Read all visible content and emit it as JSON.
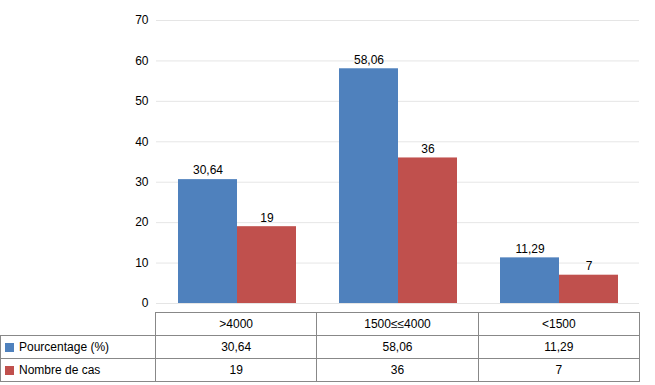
{
  "chart_data": {
    "type": "bar",
    "categories": [
      ">4000",
      "1500≤≤4000",
      "<1500"
    ],
    "series": [
      {
        "name": "Pourcentage (%)",
        "color": "#4f81bd",
        "values": [
          30.64,
          58.06,
          11.29
        ],
        "value_labels": [
          "30,64",
          "58,06",
          "11,29"
        ]
      },
      {
        "name": "Nombre de cas",
        "color": "#c0504d",
        "values": [
          19,
          36,
          7
        ]
      }
    ],
    "ylim": [
      0,
      70
    ],
    "yticks": [
      0,
      10,
      20,
      30,
      40,
      50,
      60,
      70
    ],
    "grid": true,
    "data_labels": true,
    "legend": "bottom"
  }
}
